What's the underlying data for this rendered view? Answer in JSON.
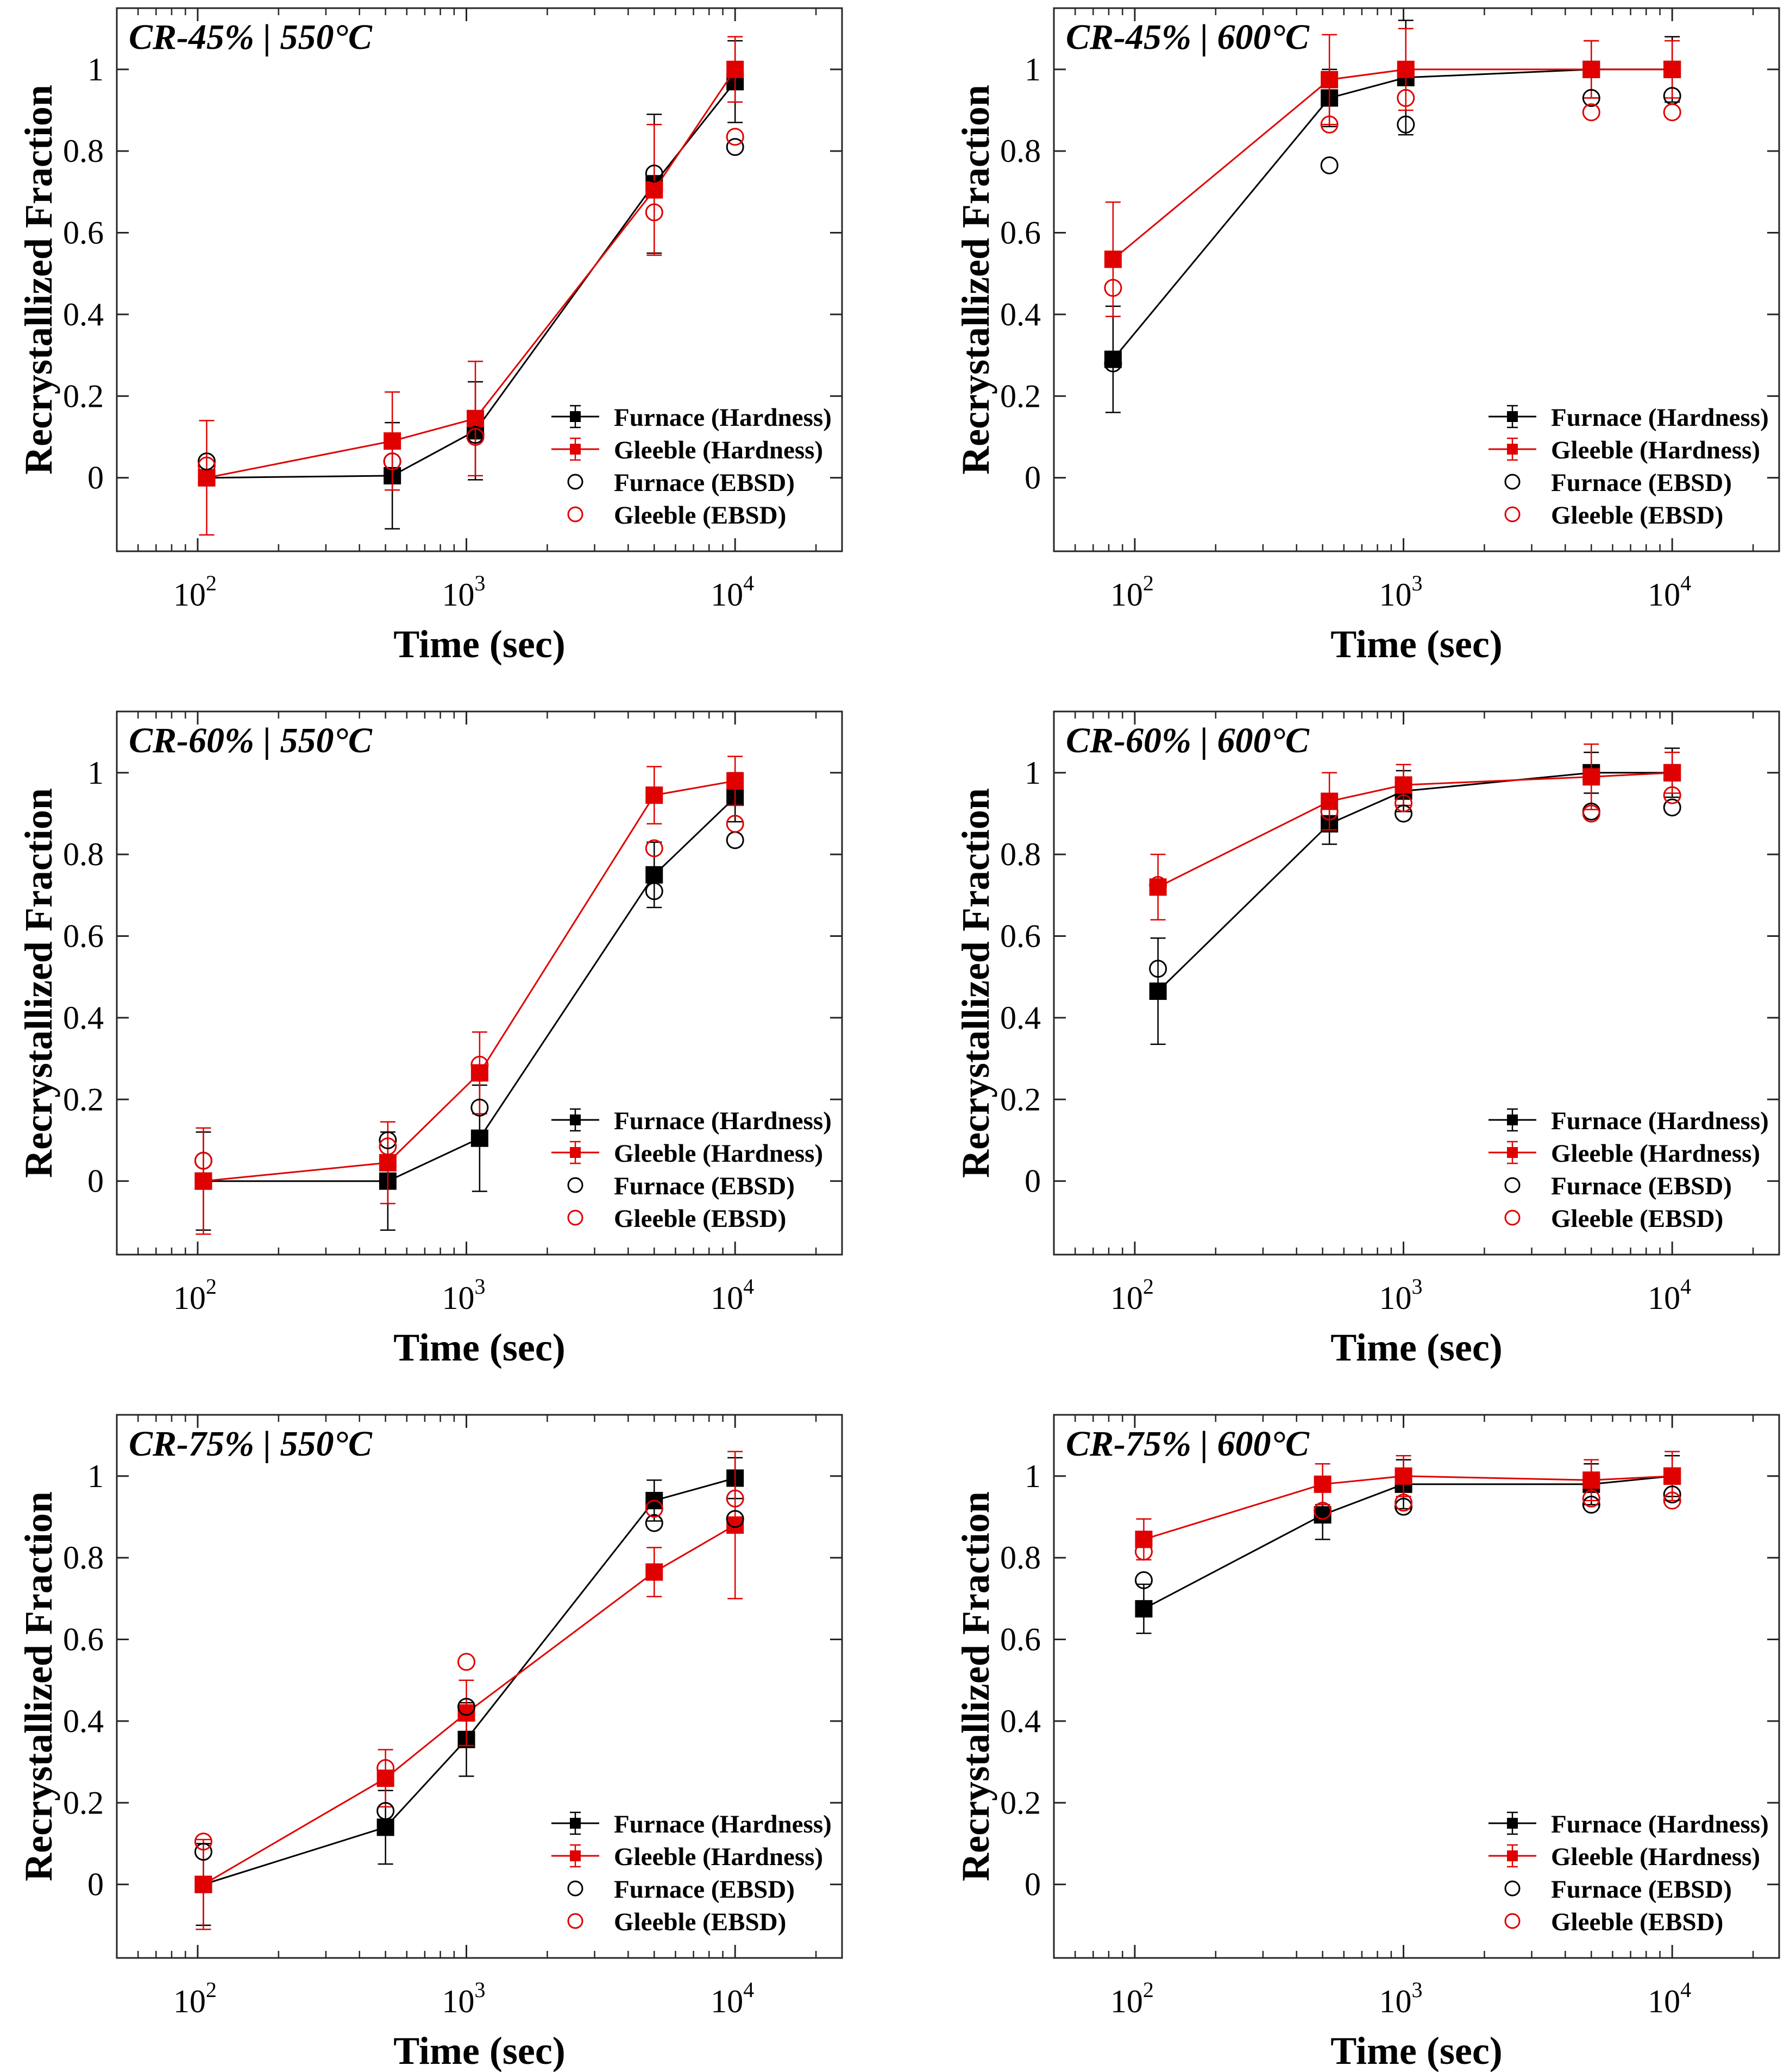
{
  "figure": {
    "legend": [
      {
        "label": "Furnace (Hardness)",
        "color": "#000000",
        "kind": "square-line"
      },
      {
        "label": "Gleeble (Hardness)",
        "color": "#e00000",
        "kind": "square-line"
      },
      {
        "label": "Furnace (EBSD)",
        "color": "#000000",
        "kind": "circle"
      },
      {
        "label": "Gleeble (EBSD)",
        "color": "#e00000",
        "kind": "circle"
      }
    ]
  },
  "chart_data": [
    {
      "type": "line",
      "title": "CR-45% | 550°C",
      "xlabel": "Time (sec)",
      "ylabel": "Recrystallized Fraction",
      "xscale": "log",
      "xlim": [
        50,
        25000
      ],
      "ylim": [
        -0.18,
        1.15
      ],
      "xticks": [
        {
          "base": "10",
          "exp": "2",
          "value": 100
        },
        {
          "base": "10",
          "exp": "3",
          "value": 1000
        },
        {
          "base": "10",
          "exp": "4",
          "value": 10000
        }
      ],
      "yticks": [
        0,
        0.2,
        0.4,
        0.6,
        0.8,
        1
      ],
      "ytick_labels": [
        "0",
        "0.2",
        "0.4",
        "0.6",
        "0.8",
        "1"
      ],
      "series": [
        {
          "name": "Furnace (Hardness)",
          "color": "#000000",
          "x": [
            108,
            530,
            1080,
            5000,
            10000
          ],
          "y": [
            0.0,
            0.005,
            0.115,
            0.72,
            0.97
          ],
          "err": [
            0.0,
            0.13,
            0.12,
            0.17,
            0.1
          ]
        },
        {
          "name": "Gleeble (Hardness)",
          "color": "#e00000",
          "x": [
            108,
            530,
            1080,
            5000,
            10000
          ],
          "y": [
            0.0,
            0.09,
            0.145,
            0.705,
            1.0
          ],
          "err": [
            0.14,
            0.12,
            0.14,
            0.16,
            0.08
          ]
        },
        {
          "name": "Furnace (EBSD)",
          "color": "#000000",
          "x": [
            108,
            530,
            1080,
            5000,
            10000
          ],
          "y": [
            0.04,
            0.04,
            0.105,
            0.745,
            0.81
          ]
        },
        {
          "name": "Gleeble (EBSD)",
          "color": "#e00000",
          "x": [
            108,
            530,
            1080,
            5000,
            10000
          ],
          "y": [
            0.03,
            0.04,
            0.1,
            0.65,
            0.835
          ]
        }
      ]
    },
    {
      "type": "line",
      "title": "CR-45% | 600°C",
      "xlabel": "Time (sec)",
      "ylabel": "Recrystallized Fraction",
      "xscale": "log",
      "xlim": [
        50,
        25000
      ],
      "ylim": [
        -0.18,
        1.15
      ],
      "xticks": [
        {
          "base": "10",
          "exp": "2",
          "value": 100
        },
        {
          "base": "10",
          "exp": "3",
          "value": 1000
        },
        {
          "base": "10",
          "exp": "4",
          "value": 10000
        }
      ],
      "yticks": [
        0,
        0.2,
        0.4,
        0.6,
        0.8,
        1
      ],
      "ytick_labels": [
        "0",
        "0.2",
        "0.4",
        "0.6",
        "0.8",
        "1"
      ],
      "series": [
        {
          "name": "Furnace (Hardness)",
          "color": "#000000",
          "x": [
            83,
            530,
            1020,
            5000,
            10000
          ],
          "y": [
            0.29,
            0.93,
            0.98,
            1.0,
            1.0
          ],
          "err": [
            0.13,
            0.07,
            0.14,
            0.07,
            0.08
          ]
        },
        {
          "name": "Gleeble (Hardness)",
          "color": "#e00000",
          "x": [
            83,
            530,
            1020,
            5000,
            10000
          ],
          "y": [
            0.535,
            0.975,
            1.0,
            1.0,
            1.0
          ],
          "err": [
            0.14,
            0.11,
            0.1,
            0.07,
            0.07
          ]
        },
        {
          "name": "Furnace (EBSD)",
          "color": "#000000",
          "x": [
            83,
            530,
            1020,
            5000,
            10000
          ],
          "y": [
            0.28,
            0.765,
            0.865,
            0.93,
            0.935
          ]
        },
        {
          "name": "Gleeble (EBSD)",
          "color": "#e00000",
          "x": [
            83,
            530,
            1020,
            5000,
            10000
          ],
          "y": [
            0.465,
            0.865,
            0.93,
            0.895,
            0.895
          ]
        }
      ]
    },
    {
      "type": "line",
      "title": "CR-60% | 550°C",
      "xlabel": "Time (sec)",
      "ylabel": "Recrystallized Fraction",
      "xscale": "log",
      "xlim": [
        50,
        25000
      ],
      "ylim": [
        -0.18,
        1.15
      ],
      "xticks": [
        {
          "base": "10",
          "exp": "2",
          "value": 100
        },
        {
          "base": "10",
          "exp": "3",
          "value": 1000
        },
        {
          "base": "10",
          "exp": "4",
          "value": 10000
        }
      ],
      "yticks": [
        0,
        0.2,
        0.4,
        0.6,
        0.8,
        1
      ],
      "ytick_labels": [
        "0",
        "0.2",
        "0.4",
        "0.6",
        "0.8",
        "1"
      ],
      "series": [
        {
          "name": "Furnace (Hardness)",
          "color": "#000000",
          "x": [
            105,
            510,
            1120,
            5000,
            10000
          ],
          "y": [
            0.0,
            0.0,
            0.105,
            0.75,
            0.94
          ],
          "err": [
            0.12,
            0.12,
            0.13,
            0.08,
            0.06
          ]
        },
        {
          "name": "Gleeble (Hardness)",
          "color": "#e00000",
          "x": [
            105,
            510,
            1120,
            5000,
            10000
          ],
          "y": [
            0.0,
            0.045,
            0.265,
            0.945,
            0.98
          ],
          "err": [
            0.13,
            0.1,
            0.1,
            0.07,
            0.06
          ]
        },
        {
          "name": "Furnace (EBSD)",
          "color": "#000000",
          "x": [
            105,
            510,
            1120,
            5000,
            10000
          ],
          "y": [
            0.05,
            0.1,
            0.18,
            0.71,
            0.835
          ]
        },
        {
          "name": "Gleeble (EBSD)",
          "color": "#e00000",
          "x": [
            105,
            510,
            1120,
            5000,
            10000
          ],
          "y": [
            0.05,
            0.085,
            0.285,
            0.815,
            0.875
          ]
        }
      ]
    },
    {
      "type": "line",
      "title": "CR-60% | 600°C",
      "xlabel": "Time (sec)",
      "ylabel": "Recrystallized Fraction",
      "xscale": "log",
      "xlim": [
        50,
        25000
      ],
      "ylim": [
        -0.18,
        1.15
      ],
      "xticks": [
        {
          "base": "10",
          "exp": "2",
          "value": 100
        },
        {
          "base": "10",
          "exp": "3",
          "value": 1000
        },
        {
          "base": "10",
          "exp": "4",
          "value": 10000
        }
      ],
      "yticks": [
        0,
        0.2,
        0.4,
        0.6,
        0.8,
        1
      ],
      "ytick_labels": [
        "0",
        "0.2",
        "0.4",
        "0.6",
        "0.8",
        "1"
      ],
      "series": [
        {
          "name": "Furnace (Hardness)",
          "color": "#000000",
          "x": [
            122,
            530,
            1000,
            5000,
            10000
          ],
          "y": [
            0.465,
            0.875,
            0.955,
            1.0,
            1.0
          ],
          "err": [
            0.13,
            0.05,
            0.05,
            0.05,
            0.06
          ]
        },
        {
          "name": "Gleeble (Hardness)",
          "color": "#e00000",
          "x": [
            122,
            530,
            1000,
            5000,
            10000
          ],
          "y": [
            0.72,
            0.93,
            0.97,
            0.99,
            1.0
          ],
          "err": [
            0.08,
            0.07,
            0.05,
            0.08,
            0.05
          ]
        },
        {
          "name": "Furnace (EBSD)",
          "color": "#000000",
          "x": [
            122,
            530,
            1000,
            5000,
            10000
          ],
          "y": [
            0.52,
            0.905,
            0.9,
            0.905,
            0.915
          ]
        },
        {
          "name": "Gleeble (EBSD)",
          "color": "#e00000",
          "x": [
            122,
            530,
            1000,
            5000,
            10000
          ],
          "y": [
            0.725,
            0.905,
            0.925,
            0.9,
            0.945
          ]
        }
      ]
    },
    {
      "type": "line",
      "title": "CR-75% | 550°C",
      "xlabel": "Time (sec)",
      "ylabel": "Recrystallized Fraction",
      "xscale": "log",
      "xlim": [
        50,
        25000
      ],
      "ylim": [
        -0.18,
        1.15
      ],
      "xticks": [
        {
          "base": "10",
          "exp": "2",
          "value": 100
        },
        {
          "base": "10",
          "exp": "3",
          "value": 1000
        },
        {
          "base": "10",
          "exp": "4",
          "value": 10000
        }
      ],
      "yticks": [
        0,
        0.2,
        0.4,
        0.6,
        0.8,
        1
      ],
      "ytick_labels": [
        "0",
        "0.2",
        "0.4",
        "0.6",
        "0.8",
        "1"
      ],
      "series": [
        {
          "name": "Furnace (Hardness)",
          "color": "#000000",
          "x": [
            105,
            500,
            1000,
            5000,
            10000
          ],
          "y": [
            0.0,
            0.14,
            0.355,
            0.94,
            0.995
          ],
          "err": [
            0.1,
            0.09,
            0.09,
            0.05,
            0.05
          ]
        },
        {
          "name": "Gleeble (Hardness)",
          "color": "#e00000",
          "x": [
            105,
            500,
            1000,
            5000,
            10000
          ],
          "y": [
            0.0,
            0.26,
            0.42,
            0.765,
            0.88
          ],
          "err": [
            0.11,
            0.07,
            0.08,
            0.06,
            0.18
          ]
        },
        {
          "name": "Furnace (EBSD)",
          "color": "#000000",
          "x": [
            105,
            500,
            1000,
            5000,
            10000
          ],
          "y": [
            0.08,
            0.18,
            0.435,
            0.885,
            0.895
          ]
        },
        {
          "name": "Gleeble (EBSD)",
          "color": "#e00000",
          "x": [
            105,
            500,
            1000,
            5000,
            10000
          ],
          "y": [
            0.105,
            0.285,
            0.545,
            0.92,
            0.945
          ]
        }
      ]
    },
    {
      "type": "line",
      "title": "CR-75% | 600°C",
      "xlabel": "Time (sec)",
      "ylabel": "Recrystallized Fraction",
      "xscale": "log",
      "xlim": [
        50,
        25000
      ],
      "ylim": [
        -0.18,
        1.15
      ],
      "xticks": [
        {
          "base": "10",
          "exp": "2",
          "value": 100
        },
        {
          "base": "10",
          "exp": "3",
          "value": 1000
        },
        {
          "base": "10",
          "exp": "4",
          "value": 10000
        }
      ],
      "yticks": [
        0,
        0.2,
        0.4,
        0.6,
        0.8,
        1
      ],
      "ytick_labels": [
        "0",
        "0.2",
        "0.4",
        "0.6",
        "0.8",
        "1"
      ],
      "series": [
        {
          "name": "Furnace (Hardness)",
          "color": "#000000",
          "x": [
            108,
            500,
            1000,
            5000,
            10000
          ],
          "y": [
            0.675,
            0.905,
            0.98,
            0.98,
            1.0
          ],
          "err": [
            0.06,
            0.06,
            0.06,
            0.05,
            0.05
          ]
        },
        {
          "name": "Gleeble (Hardness)",
          "color": "#e00000",
          "x": [
            108,
            500,
            1000,
            5000,
            10000
          ],
          "y": [
            0.845,
            0.98,
            1.0,
            0.99,
            1.0
          ],
          "err": [
            0.05,
            0.05,
            0.05,
            0.05,
            0.06
          ]
        },
        {
          "name": "Furnace (EBSD)",
          "color": "#000000",
          "x": [
            108,
            500,
            1000,
            5000,
            10000
          ],
          "y": [
            0.745,
            0.915,
            0.925,
            0.93,
            0.955
          ]
        },
        {
          "name": "Gleeble (EBSD)",
          "color": "#e00000",
          "x": [
            108,
            500,
            1000,
            5000,
            10000
          ],
          "y": [
            0.815,
            0.915,
            0.935,
            0.945,
            0.94
          ]
        }
      ]
    }
  ]
}
